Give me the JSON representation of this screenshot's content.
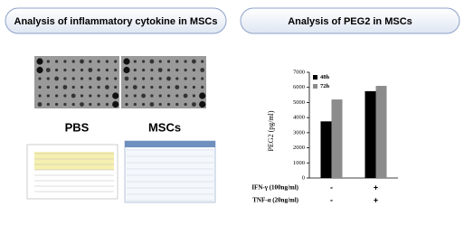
{
  "left_panel": {
    "title": "Analysis of inflammatory cytokine in MSCs",
    "images": [
      "PBS",
      "MSCs"
    ]
  },
  "chart_data": {
    "type": "bar",
    "title": "Analysis of PEG2 in MSCs",
    "ylabel": "PEG2 (pg/ml)",
    "categories": [
      null,
      null
    ],
    "series": [
      {
        "name": "48h",
        "color": "#000000",
        "values": [
          3750,
          5750
        ]
      },
      {
        "name": "72h",
        "color": "#8c8c8c",
        "values": [
          5200,
          6100
        ]
      }
    ],
    "conditions": [
      {
        "name": "IFN-γ (100ng/ml)",
        "values": [
          "-",
          "+"
        ]
      },
      {
        "name": "TNF-α (20ng/ml)",
        "values": [
          "-",
          "+"
        ]
      }
    ],
    "ylim": [
      0,
      7000
    ],
    "yticks": [
      0,
      1000,
      2000,
      3000,
      4000,
      5000,
      6000,
      7000
    ],
    "legend": "upper left"
  }
}
